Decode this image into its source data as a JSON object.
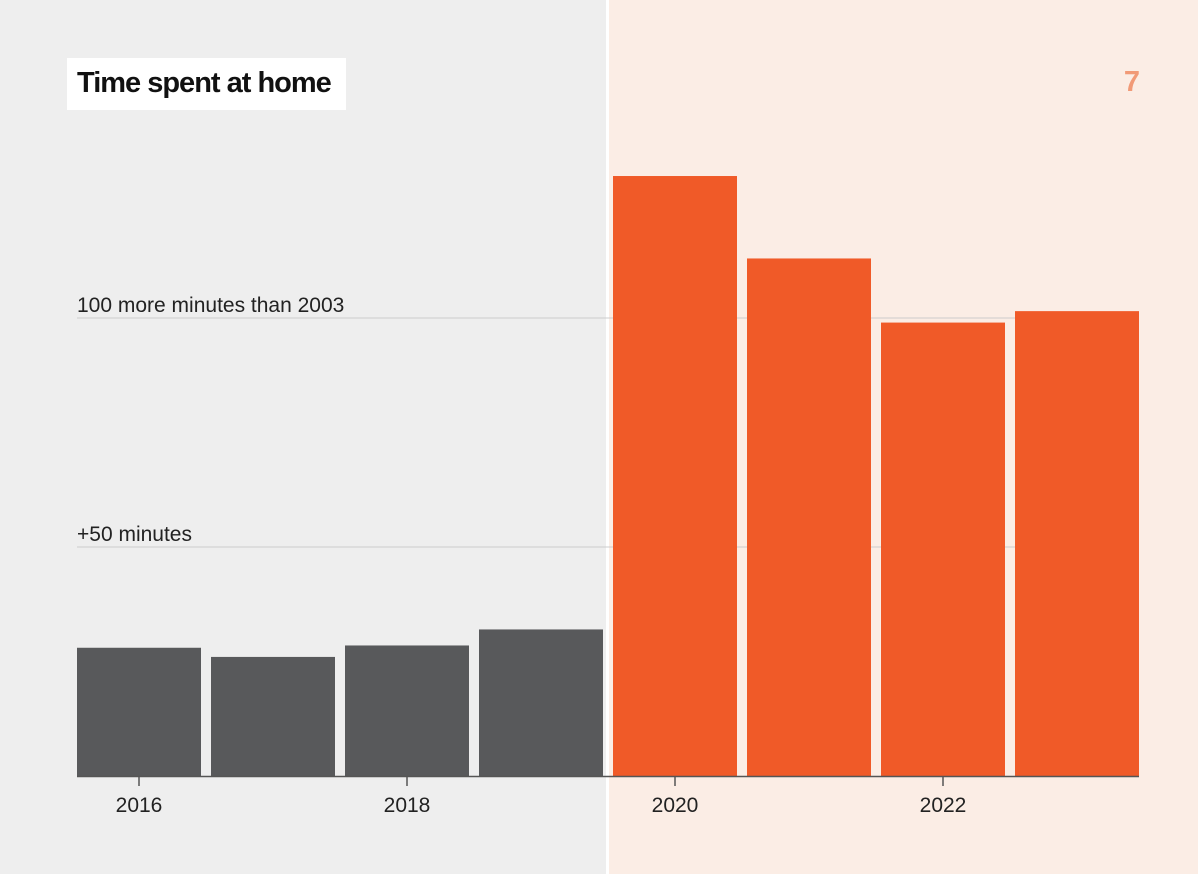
{
  "header": {
    "title": "Time spent at home",
    "page_number": "7"
  },
  "colors": {
    "background_pre": "#eeeeee",
    "background_post": "#fbede5",
    "bar_pre": "#58595b",
    "bar_post": "#f05a28",
    "page_number": "#f19a77",
    "gridline": "#cccccc",
    "axis": "#555555"
  },
  "chart_data": {
    "type": "bar",
    "title": "Time spent at home",
    "categories": [
      "2016",
      "2017",
      "2018",
      "2019",
      "2020",
      "2021",
      "2022",
      "2023"
    ],
    "values": [
      28,
      26,
      28.5,
      32,
      131,
      113,
      99,
      101.5
    ],
    "highlight_from": "2020",
    "x_tick_labels": [
      "2016",
      "2018",
      "2020",
      "2022"
    ],
    "y_gridlines": [
      {
        "value": 50,
        "label": "+50 minutes"
      },
      {
        "value": 100,
        "label": "100 more minutes than 2003"
      }
    ],
    "ylim": [
      0,
      140
    ],
    "xlabel": "",
    "ylabel": "",
    "grid": true
  }
}
